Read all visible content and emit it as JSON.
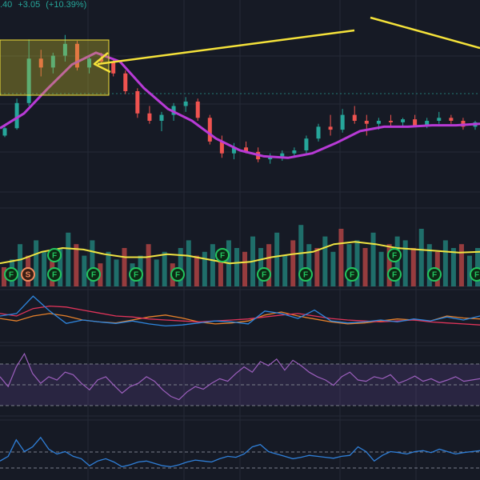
{
  "header": {
    "last_price_fragment": ".40",
    "change": "+3.05",
    "change_pct": "(+10.39%)"
  },
  "colors": {
    "background": "#161a25",
    "grid": "#252a36",
    "up": "#26a69a",
    "down": "#ef5350",
    "ma_price": "#b83ad6",
    "volume_ma": "#f0e442",
    "annotation": "#f5e23a",
    "rsi": "#9c5fbd",
    "macd_blue": "#2e86de",
    "macd_red": "#e0345a",
    "macd_orange": "#e6802a",
    "bottom_line": "#2f7fd8",
    "marker_F": "#22c55e",
    "marker_S": "#f08a5d"
  },
  "markers": {
    "fractal_label": "F",
    "signal_label": "S"
  },
  "chart_data": {
    "type": "candlestick",
    "note_panels": [
      "price",
      "volume",
      "oscillator",
      "rsi",
      "momentum"
    ],
    "price": {
      "ma_values_relative": [
        0.35,
        0.45,
        0.62,
        0.78,
        0.86,
        0.8,
        0.62,
        0.48,
        0.4,
        0.28,
        0.2,
        0.16,
        0.15,
        0.18,
        0.25,
        0.33,
        0.36,
        0.36,
        0.37,
        0.37,
        0.38
      ],
      "candles_relative": [
        {
          "o": 0.3,
          "h": 0.36,
          "l": 0.29,
          "c": 0.35
        },
        {
          "o": 0.35,
          "h": 0.55,
          "l": 0.34,
          "c": 0.52
        },
        {
          "o": 0.52,
          "h": 0.95,
          "l": 0.5,
          "c": 0.82
        },
        {
          "o": 0.82,
          "h": 0.88,
          "l": 0.7,
          "c": 0.76
        },
        {
          "o": 0.76,
          "h": 0.86,
          "l": 0.72,
          "c": 0.84
        },
        {
          "o": 0.84,
          "h": 0.98,
          "l": 0.8,
          "c": 0.92
        },
        {
          "o": 0.92,
          "h": 0.94,
          "l": 0.74,
          "c": 0.76
        },
        {
          "o": 0.76,
          "h": 0.84,
          "l": 0.72,
          "c": 0.82
        },
        {
          "o": 0.82,
          "h": 0.86,
          "l": 0.78,
          "c": 0.8
        },
        {
          "o": 0.8,
          "h": 0.82,
          "l": 0.7,
          "c": 0.72
        },
        {
          "o": 0.72,
          "h": 0.74,
          "l": 0.58,
          "c": 0.6
        },
        {
          "o": 0.6,
          "h": 0.62,
          "l": 0.42,
          "c": 0.45
        },
        {
          "o": 0.45,
          "h": 0.5,
          "l": 0.38,
          "c": 0.4
        },
        {
          "o": 0.4,
          "h": 0.46,
          "l": 0.33,
          "c": 0.44
        },
        {
          "o": 0.44,
          "h": 0.52,
          "l": 0.4,
          "c": 0.5
        },
        {
          "o": 0.5,
          "h": 0.56,
          "l": 0.46,
          "c": 0.53
        },
        {
          "o": 0.53,
          "h": 0.55,
          "l": 0.4,
          "c": 0.42
        },
        {
          "o": 0.42,
          "h": 0.44,
          "l": 0.24,
          "c": 0.26
        },
        {
          "o": 0.26,
          "h": 0.3,
          "l": 0.15,
          "c": 0.18
        },
        {
          "o": 0.18,
          "h": 0.25,
          "l": 0.14,
          "c": 0.22
        },
        {
          "o": 0.22,
          "h": 0.26,
          "l": 0.18,
          "c": 0.19
        },
        {
          "o": 0.19,
          "h": 0.22,
          "l": 0.12,
          "c": 0.14
        },
        {
          "o": 0.14,
          "h": 0.18,
          "l": 0.11,
          "c": 0.16
        },
        {
          "o": 0.16,
          "h": 0.2,
          "l": 0.13,
          "c": 0.18
        },
        {
          "o": 0.18,
          "h": 0.22,
          "l": 0.15,
          "c": 0.2
        },
        {
          "o": 0.2,
          "h": 0.3,
          "l": 0.18,
          "c": 0.28
        },
        {
          "o": 0.28,
          "h": 0.38,
          "l": 0.26,
          "c": 0.36
        },
        {
          "o": 0.36,
          "h": 0.44,
          "l": 0.3,
          "c": 0.34
        },
        {
          "o": 0.34,
          "h": 0.48,
          "l": 0.32,
          "c": 0.44
        },
        {
          "o": 0.44,
          "h": 0.5,
          "l": 0.38,
          "c": 0.4
        },
        {
          "o": 0.4,
          "h": 0.44,
          "l": 0.3,
          "c": 0.38
        },
        {
          "o": 0.38,
          "h": 0.42,
          "l": 0.34,
          "c": 0.4
        },
        {
          "o": 0.4,
          "h": 0.44,
          "l": 0.36,
          "c": 0.39
        },
        {
          "o": 0.39,
          "h": 0.42,
          "l": 0.36,
          "c": 0.41
        },
        {
          "o": 0.41,
          "h": 0.44,
          "l": 0.36,
          "c": 0.37
        },
        {
          "o": 0.37,
          "h": 0.42,
          "l": 0.35,
          "c": 0.4
        },
        {
          "o": 0.4,
          "h": 0.46,
          "l": 0.38,
          "c": 0.42
        },
        {
          "o": 0.42,
          "h": 0.44,
          "l": 0.38,
          "c": 0.4
        },
        {
          "o": 0.4,
          "h": 0.42,
          "l": 0.34,
          "c": 0.36
        },
        {
          "o": 0.36,
          "h": 0.4,
          "l": 0.34,
          "c": 0.39
        }
      ]
    },
    "volume": {
      "values_relative": [
        0.25,
        0.35,
        0.55,
        0.4,
        0.6,
        0.45,
        0.35,
        0.5,
        0.7,
        0.55,
        0.4,
        0.6,
        0.3,
        0.45,
        0.35,
        0.5,
        0.3,
        0.4,
        0.55,
        0.35,
        0.45,
        0.3,
        0.5,
        0.6,
        0.4,
        0.45,
        0.55,
        0.35,
        0.6,
        0.5,
        0.45,
        0.65,
        0.5,
        0.55,
        0.7,
        0.4,
        0.6,
        0.8,
        0.55,
        0.5,
        0.65,
        0.45,
        0.75,
        0.55,
        0.6,
        0.5,
        0.7,
        0.45,
        0.55,
        0.65,
        0.6,
        0.5,
        0.75,
        0.55,
        0.45,
        0.6,
        0.5,
        0.55,
        0.4,
        0.5
      ],
      "ma_relative": [
        0.3,
        0.35,
        0.45,
        0.5,
        0.48,
        0.42,
        0.38,
        0.38,
        0.42,
        0.4,
        0.35,
        0.3,
        0.32,
        0.38,
        0.42,
        0.45,
        0.55,
        0.58,
        0.55,
        0.5,
        0.48,
        0.46,
        0.44,
        0.45
      ]
    },
    "oscillator": {
      "blue_relative": [
        0.5,
        0.55,
        0.9,
        0.6,
        0.35,
        0.42,
        0.38,
        0.35,
        0.4,
        0.34,
        0.3,
        0.32,
        0.36,
        0.4,
        0.38,
        0.34,
        0.6,
        0.55,
        0.45,
        0.62,
        0.4,
        0.36,
        0.38,
        0.42,
        0.38,
        0.44,
        0.4,
        0.48,
        0.42,
        0.5
      ],
      "red_relative": [
        0.55,
        0.5,
        0.65,
        0.7,
        0.68,
        0.62,
        0.56,
        0.5,
        0.48,
        0.44,
        0.42,
        0.4,
        0.38,
        0.4,
        0.42,
        0.44,
        0.48,
        0.52,
        0.55,
        0.5,
        0.45,
        0.42,
        0.4,
        0.38,
        0.4,
        0.42,
        0.38,
        0.36,
        0.34,
        0.32
      ],
      "orange_relative": [
        0.45,
        0.4,
        0.5,
        0.55,
        0.5,
        0.42,
        0.38,
        0.36,
        0.42,
        0.48,
        0.52,
        0.46,
        0.38,
        0.34,
        0.36,
        0.4,
        0.52,
        0.58,
        0.5,
        0.44,
        0.38,
        0.34,
        0.36,
        0.4,
        0.44,
        0.42,
        0.4,
        0.5,
        0.46,
        0.44
      ]
    },
    "rsi": {
      "values_relative": [
        0.55,
        0.4,
        0.7,
        0.9,
        0.6,
        0.45,
        0.55,
        0.5,
        0.62,
        0.58,
        0.45,
        0.35,
        0.5,
        0.55,
        0.42,
        0.3,
        0.4,
        0.45,
        0.55,
        0.48,
        0.35,
        0.25,
        0.2,
        0.32,
        0.4,
        0.36,
        0.45,
        0.52,
        0.48,
        0.6,
        0.7,
        0.62,
        0.78,
        0.72,
        0.82,
        0.65,
        0.8,
        0.72,
        0.62,
        0.55,
        0.5,
        0.42,
        0.55,
        0.62,
        0.5,
        0.48,
        0.55,
        0.52,
        0.58,
        0.45,
        0.5,
        0.56,
        0.48,
        0.52,
        0.46,
        0.5,
        0.55,
        0.48,
        0.5,
        0.52
      ]
    },
    "momentum": {
      "values_relative": [
        0.3,
        0.4,
        0.75,
        0.5,
        0.6,
        0.8,
        0.55,
        0.45,
        0.5,
        0.4,
        0.35,
        0.2,
        0.3,
        0.35,
        0.28,
        0.18,
        0.22,
        0.28,
        0.3,
        0.25,
        0.2,
        0.18,
        0.22,
        0.28,
        0.32,
        0.3,
        0.28,
        0.35,
        0.4,
        0.38,
        0.45,
        0.6,
        0.65,
        0.5,
        0.45,
        0.4,
        0.35,
        0.38,
        0.42,
        0.4,
        0.38,
        0.36,
        0.4,
        0.42,
        0.6,
        0.5,
        0.3,
        0.42,
        0.5,
        0.48,
        0.45,
        0.5,
        0.52,
        0.48,
        0.55,
        0.5,
        0.45,
        0.48,
        0.5,
        0.52
      ]
    }
  }
}
